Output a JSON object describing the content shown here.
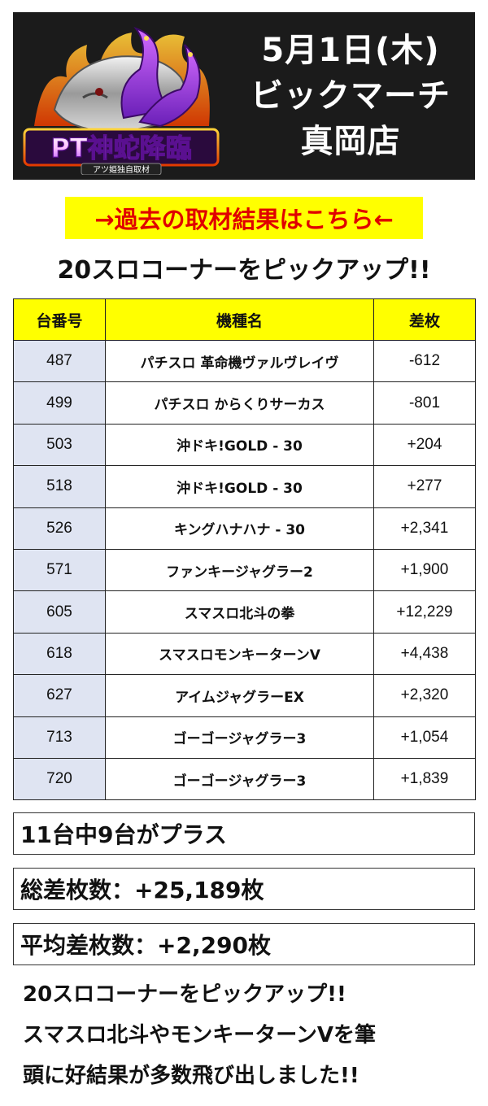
{
  "header": {
    "logo_text": "PT神蛇降臨",
    "logo_subtext": "アツ姫独自取材",
    "date": "5月1日(木)",
    "store_line1": "ビックマーチ",
    "store_line2": "真岡店"
  },
  "past_link": "→過去の取材結果はこちら←",
  "section_title": "20スロコーナーをピックアップ!!",
  "table": {
    "headers": [
      "台番号",
      "機種名",
      "差枚"
    ],
    "rows": [
      {
        "num": "487",
        "name": "パチスロ 革命機ヴァルヴレイヴ",
        "diff": "-612"
      },
      {
        "num": "499",
        "name": "パチスロ からくりサーカス",
        "diff": "-801"
      },
      {
        "num": "503",
        "name": "沖ドキ!GOLD - 30",
        "diff": "+204"
      },
      {
        "num": "518",
        "name": "沖ドキ!GOLD - 30",
        "diff": "+277"
      },
      {
        "num": "526",
        "name": "キングハナハナ - 30",
        "diff": "+2,341"
      },
      {
        "num": "571",
        "name": "ファンキージャグラー2",
        "diff": "+1,900"
      },
      {
        "num": "605",
        "name": "スマスロ北斗の拳",
        "diff": "+12,229"
      },
      {
        "num": "618",
        "name": "スマスロモンキーターンV",
        "diff": "+4,438"
      },
      {
        "num": "627",
        "name": "アイムジャグラーEX",
        "diff": "+2,320"
      },
      {
        "num": "713",
        "name": "ゴーゴージャグラー3",
        "diff": "+1,054"
      },
      {
        "num": "720",
        "name": "ゴーゴージャグラー3",
        "diff": "+1,839"
      }
    ]
  },
  "summary": {
    "plus_count": "11台中9台がプラス",
    "total": "総差枚数：+25,189枚",
    "average": "平均差枚数：+2,290枚"
  },
  "comment": {
    "line1": "20スロコーナーをピックアップ!!",
    "line2": "スマスロ北斗やモンキーターンVを筆",
    "line3": "頭に好結果が多数飛び出しました!!"
  },
  "colors": {
    "header_bg": "#1b1b1b",
    "highlight_yellow": "#ffff00",
    "link_red": "#e00000",
    "number_cell_bg": "#dfe4f2",
    "logo_purple": "#8a2be2",
    "logo_orange": "#ff7a00"
  }
}
